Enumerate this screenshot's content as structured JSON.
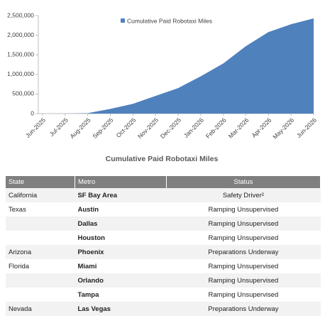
{
  "chart_data": {
    "type": "area",
    "title": "Cumulative Paid Robotaxi Miles",
    "categories": [
      "Jun-2025",
      "Jul-2025",
      "Aug-2025",
      "Sep-2025",
      "Oct-2025",
      "Nov-2025",
      "Dec-2025",
      "Jan-2026",
      "Feb-2026",
      "Mar-2026",
      "Apr-2026",
      "May-2026",
      "Jun-2026"
    ],
    "series": [
      {
        "name": "Cumulative Paid Robotaxi Miles",
        "color": "#4f81bd",
        "values": [
          0,
          0,
          10000,
          120000,
          250000,
          450000,
          650000,
          950000,
          1280000,
          1720000,
          2080000,
          2280000,
          2430000
        ]
      }
    ],
    "ylim": [
      0,
      2500000
    ],
    "yticks": [
      0,
      {
        "value": 500000,
        "label": "500,000"
      },
      {
        "value": 1000000,
        "label": "1,000,000"
      },
      {
        "value": 1500000,
        "label": "1,500,000"
      },
      {
        "value": 2000000,
        "label": "2,000,000"
      },
      {
        "value": 2500000,
        "label": "2,500,000"
      }
    ],
    "legend": "top"
  },
  "table": {
    "header": [
      "State",
      "Metro",
      "Status"
    ],
    "rows": [
      [
        "California",
        "SF Bay Area",
        "Safety Driver²"
      ],
      [
        "Texas",
        "Austin",
        "Ramping Unsupervised"
      ],
      [
        null,
        "Dallas",
        "Ramping Unsupervised"
      ],
      [
        null,
        "Houston",
        "Ramping Unsupervised"
      ],
      [
        "Arizona",
        "Phoenix",
        "Preparations Underway"
      ],
      [
        "Florida",
        "Miami",
        "Ramping Unsupervised"
      ],
      [
        null,
        "Orlando",
        "Ramping Unsupervised"
      ],
      [
        null,
        "Tampa",
        "Ramping Unsupervised"
      ],
      [
        "Nevada",
        "Las Vegas",
        "Preparations Underway"
      ]
    ]
  }
}
